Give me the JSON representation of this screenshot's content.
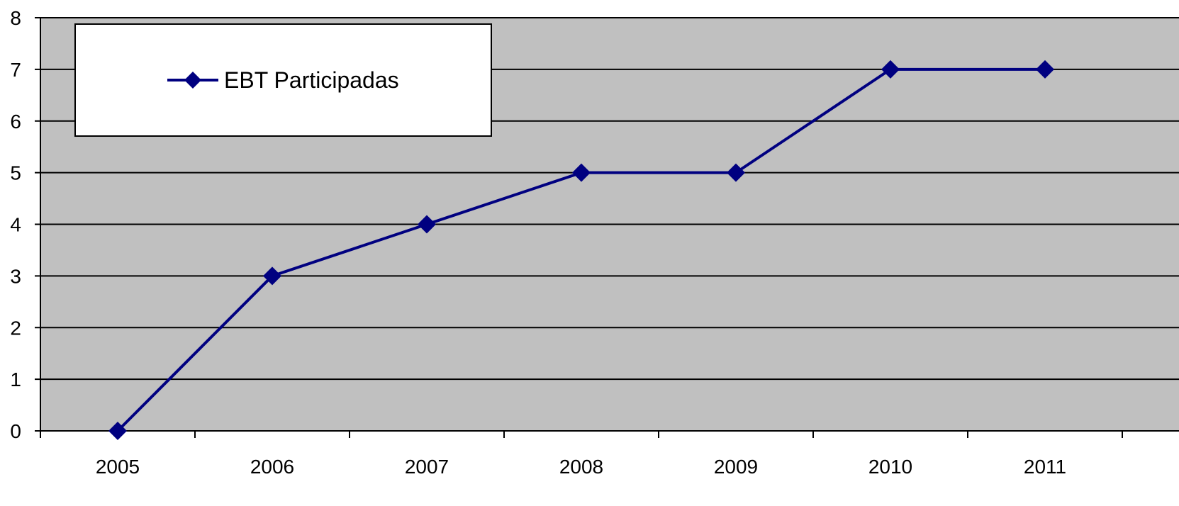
{
  "chart_data": {
    "type": "line",
    "categories": [
      "2005",
      "2006",
      "2007",
      "2008",
      "2009",
      "2010",
      "2011"
    ],
    "series": [
      {
        "name": "EBT Participadas",
        "values": [
          0,
          3,
          4,
          5,
          5,
          7,
          7
        ],
        "color": "#000080",
        "marker": "diamond"
      }
    ],
    "ylim": [
      0,
      8
    ],
    "yticks": [
      "0",
      "1",
      "2",
      "3",
      "4",
      "5",
      "6",
      "7",
      "8"
    ],
    "grid": true,
    "plot_background": "#c0c0c0",
    "legend_position": "top-left"
  }
}
